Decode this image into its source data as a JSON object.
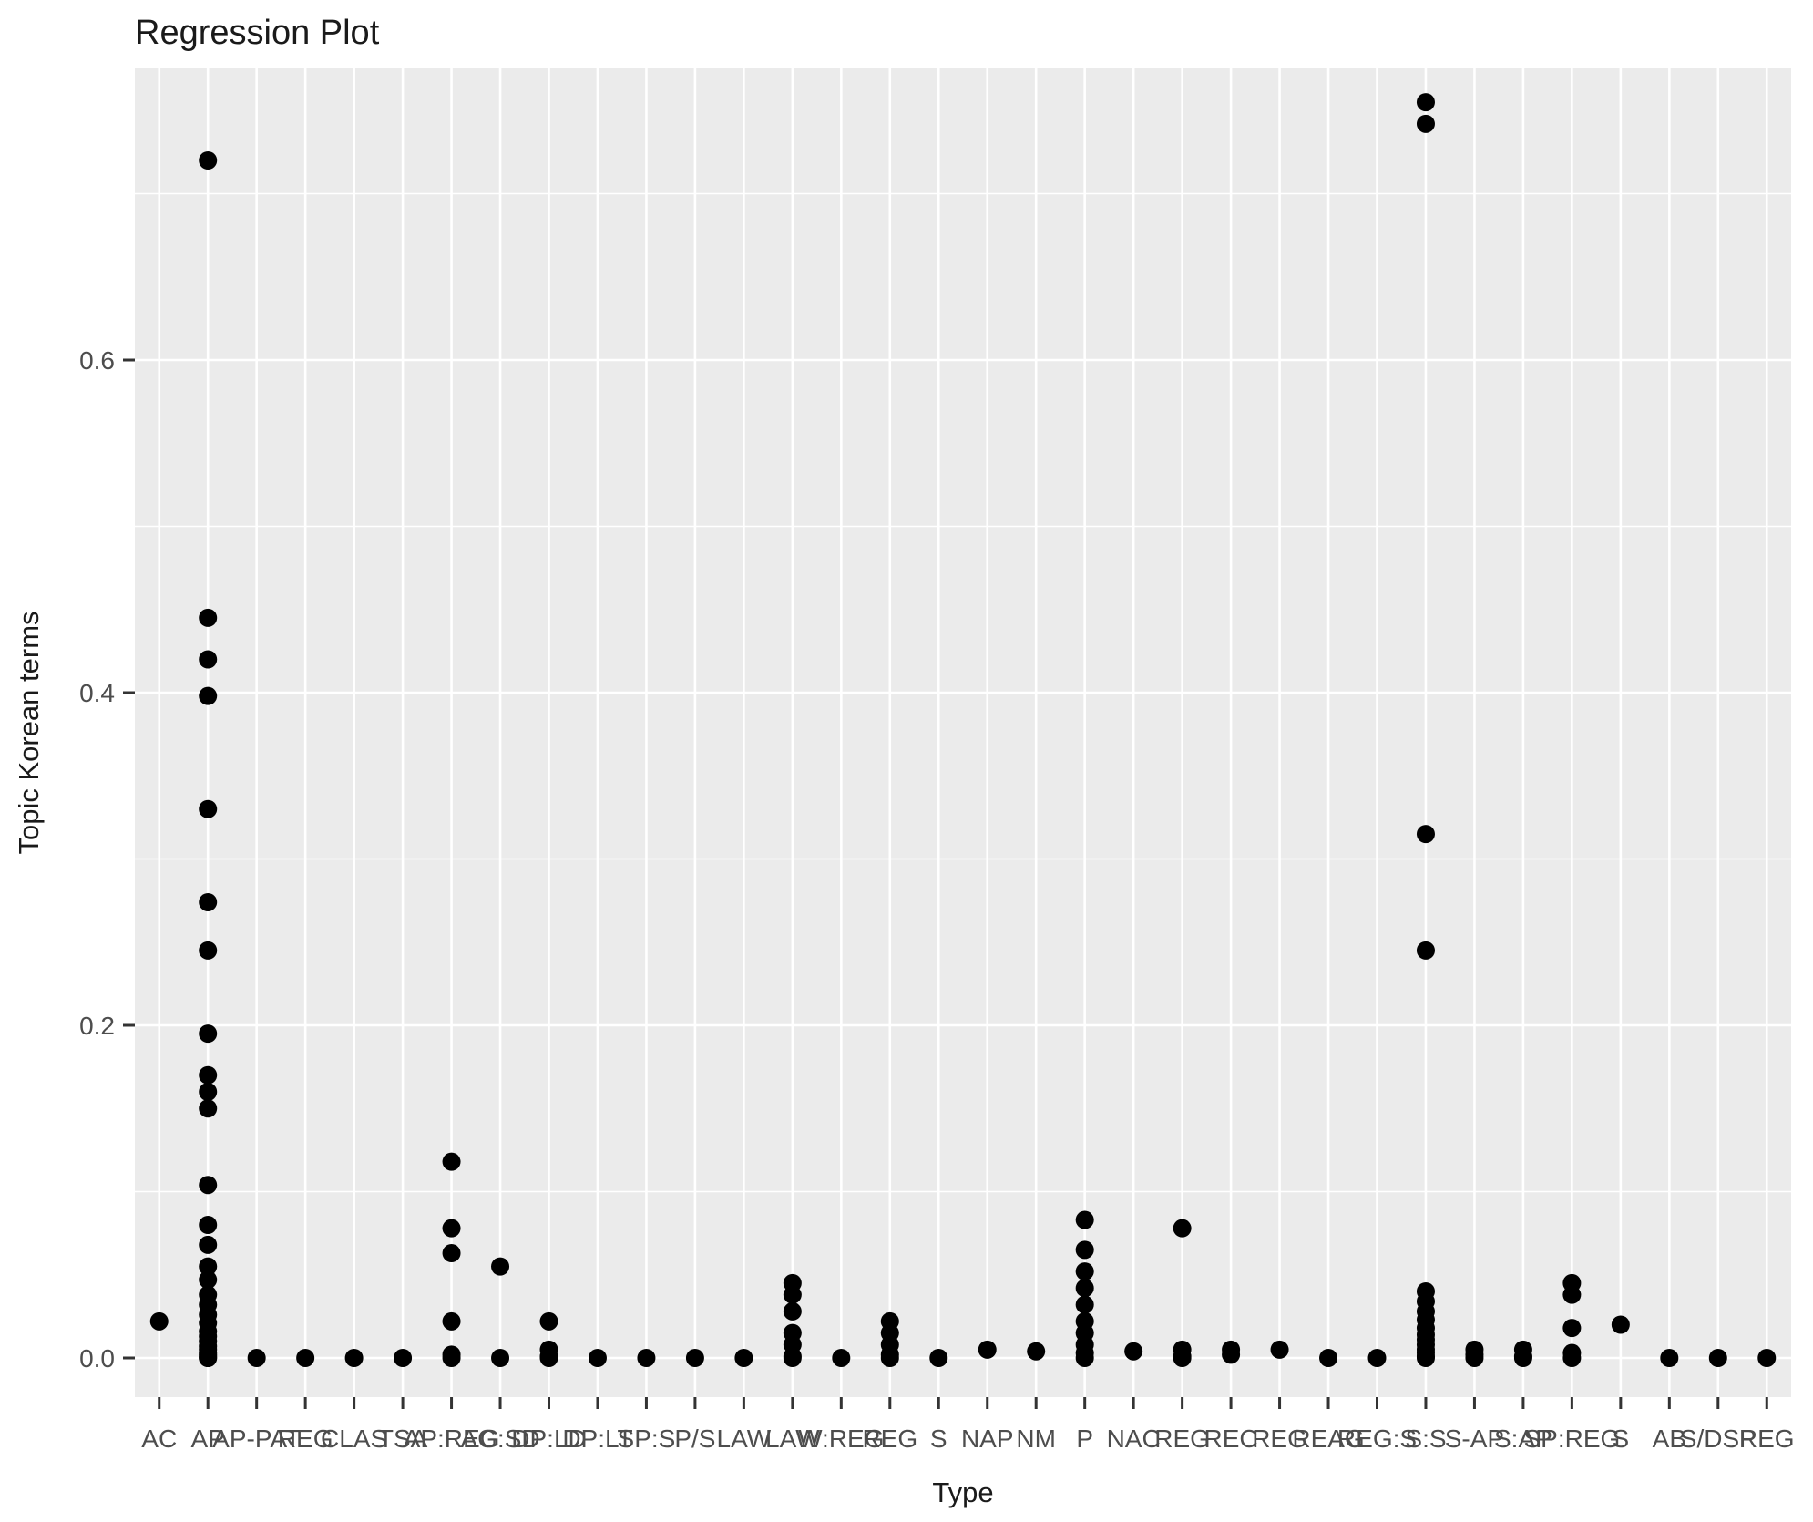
{
  "chart_data": {
    "type": "scatter",
    "title": "Regression Plot",
    "xlabel": "Type",
    "ylabel": "Topic Korean terms",
    "x_axis": {
      "categories": [
        "AC",
        "AP",
        "AP-PAT",
        "REG",
        "CLAS",
        "TSA",
        "AP:REG",
        "AG:SD",
        "DP:LD",
        "DP:LT",
        "SP:S",
        "P/S",
        "LAW",
        "LAW",
        "W:REG",
        "REG",
        "S",
        "NAP",
        "NM",
        "P",
        "NAC",
        "REG",
        "REC",
        "REG",
        "REAG",
        "REG:S",
        "S:S",
        "S-AP",
        "S:AP",
        "SP:REG",
        "S",
        "AB",
        "S/DSP",
        "REG"
      ]
    },
    "y_axis": {
      "tick_labels": [
        "0.0",
        "0.2",
        "0.4",
        "0.6"
      ],
      "tick_values": [
        0,
        0.2,
        0.4,
        0.6
      ],
      "minor_values": [
        0.1,
        0.3,
        0.5,
        0.7
      ],
      "range": [
        -0.024,
        0.775
      ]
    },
    "points_by_category": [
      [
        0.022
      ],
      [
        0.72,
        0.445,
        0.42,
        0.398,
        0.33,
        0.274,
        0.245,
        0.195,
        0.17,
        0.16,
        0.15,
        0.104,
        0.08,
        0.068,
        0.055,
        0.047,
        0.038,
        0.032,
        0.026,
        0.021,
        0.016,
        0.013,
        0.01,
        0.007,
        0.005,
        0.003,
        0.002,
        0.001,
        0,
        0
      ],
      [
        0
      ],
      [
        0
      ],
      [
        0
      ],
      [
        0
      ],
      [
        0.118,
        0.078,
        0.063,
        0.022,
        0.002,
        0
      ],
      [
        0.055,
        0
      ],
      [
        0.022,
        0.005,
        0.001,
        0
      ],
      [
        0
      ],
      [
        0
      ],
      [
        0
      ],
      [
        0
      ],
      [
        0.045,
        0.038,
        0.028,
        0.015,
        0.008,
        0.001,
        0
      ],
      [
        0
      ],
      [
        0.022,
        0.015,
        0.008,
        0.002,
        0
      ],
      [
        0
      ],
      [
        0.005
      ],
      [
        0.004
      ],
      [
        0.083,
        0.065,
        0.052,
        0.042,
        0.032,
        0.022,
        0.015,
        0.008,
        0.003,
        0
      ],
      [
        0.004
      ],
      [
        0.078,
        0.005,
        0.001,
        0
      ],
      [
        0.005,
        0.002
      ],
      [
        0.005
      ],
      [
        0
      ],
      [
        0
      ],
      [
        0.755,
        0.742,
        0.315,
        0.245,
        0.04,
        0.034,
        0.028,
        0.023,
        0.018,
        0.014,
        0.011,
        0.008,
        0.005,
        0.003,
        0.001,
        0
      ],
      [
        0.005,
        0.002,
        0
      ],
      [
        0.005,
        0.001,
        0
      ],
      [
        0.045,
        0.038,
        0.018,
        0.003,
        0
      ],
      [
        0.02
      ],
      [
        0
      ],
      [
        0
      ],
      [
        0
      ]
    ],
    "style": {
      "panel_bg": "#EBEBEB",
      "grid_color": "#FFFFFF",
      "point_color": "#000000",
      "tick_mark_color": "#333333",
      "tick_label_color": "#4D4D4D",
      "text_color": "#1A1A1A"
    }
  }
}
